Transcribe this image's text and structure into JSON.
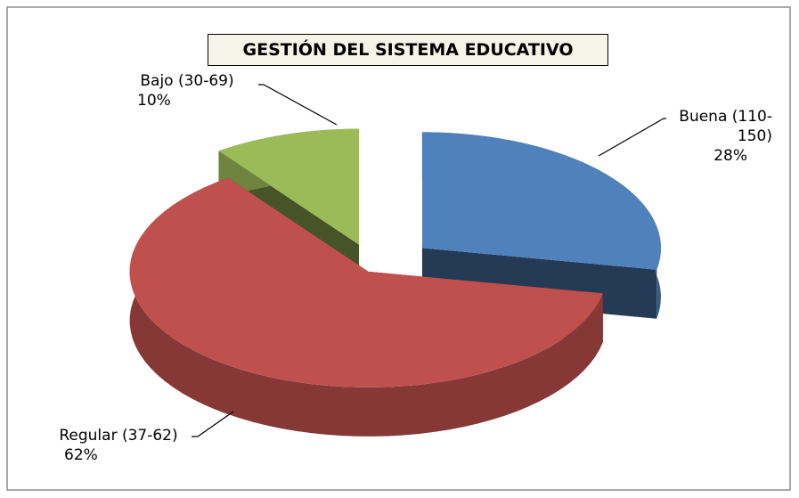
{
  "chart_data": {
    "type": "pie",
    "title": "GESTIÓN DEL SISTEMA EDUCATIVO",
    "categories": [
      "Buena (110-150)",
      "Regular (37-62)",
      "Bajo (30-69)"
    ],
    "values": [
      28,
      62,
      10
    ],
    "value_labels": [
      "28%",
      "62%",
      "10%"
    ],
    "colors": [
      "#4f81bd",
      "#c0504d",
      "#9bbb59"
    ]
  }
}
